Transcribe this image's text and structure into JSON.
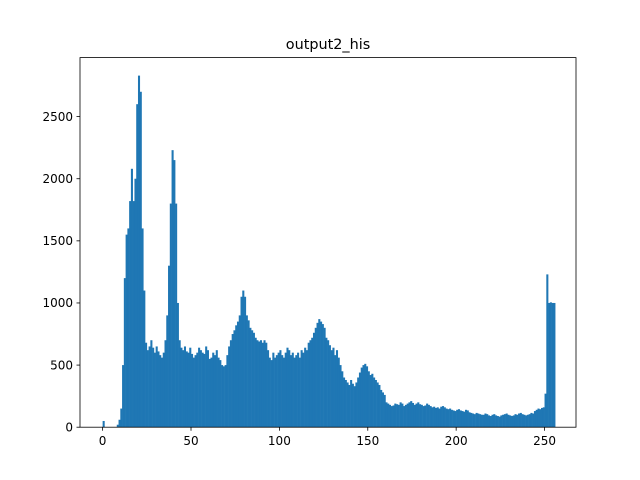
{
  "chart_data": {
    "type": "bar",
    "title": "output2_his",
    "xlabel": "",
    "ylabel": "",
    "bar_color": "#1f77b4",
    "xlim": [
      -12.8,
      267.8
    ],
    "ylim": [
      0,
      2975
    ],
    "x_ticks": [
      0,
      50,
      100,
      150,
      200,
      250
    ],
    "y_ticks": [
      0,
      500,
      1000,
      1500,
      2000,
      2500
    ],
    "grid": false,
    "bin_width": 1,
    "x_start": 0,
    "values": [
      50,
      0,
      0,
      0,
      0,
      0,
      0,
      0,
      20,
      60,
      150,
      500,
      1200,
      1550,
      1600,
      1820,
      2080,
      1820,
      2000,
      2600,
      2830,
      2700,
      1600,
      1100,
      680,
      620,
      650,
      700,
      640,
      600,
      650,
      610,
      580,
      560,
      600,
      700,
      900,
      1300,
      1800,
      2230,
      2150,
      1800,
      1000,
      700,
      640,
      620,
      650,
      610,
      600,
      640,
      590,
      560,
      580,
      600,
      640,
      620,
      600,
      590,
      650,
      620,
      550,
      560,
      600,
      580,
      620,
      560,
      540,
      500,
      490,
      500,
      580,
      650,
      700,
      750,
      780,
      820,
      850,
      900,
      1050,
      1100,
      1050,
      900,
      860,
      800,
      780,
      760,
      720,
      700,
      690,
      700,
      680,
      700,
      680,
      620,
      560,
      540,
      600,
      560,
      580,
      600,
      620,
      580,
      560,
      600,
      640,
      620,
      580,
      600,
      560,
      580,
      600,
      560,
      620,
      600,
      640,
      620,
      680,
      700,
      720,
      760,
      800,
      840,
      870,
      850,
      830,
      800,
      720,
      700,
      660,
      620,
      640,
      580,
      620,
      560,
      500,
      450,
      400,
      380,
      360,
      340,
      380,
      350,
      330,
      360,
      400,
      440,
      480,
      500,
      510,
      490,
      450,
      420,
      430,
      400,
      380,
      360,
      340,
      300,
      280,
      260,
      200,
      190,
      180,
      170,
      175,
      190,
      185,
      180,
      200,
      190,
      170,
      180,
      190,
      200,
      210,
      195,
      180,
      190,
      200,
      185,
      180,
      170,
      175,
      190,
      180,
      170,
      160,
      165,
      155,
      160,
      150,
      165,
      170,
      160,
      150,
      145,
      150,
      140,
      135,
      130,
      140,
      145,
      135,
      130,
      125,
      140,
      135,
      120,
      115,
      110,
      105,
      115,
      110,
      105,
      100,
      100,
      110,
      105,
      95,
      90,
      100,
      105,
      95,
      90,
      85,
      95,
      100,
      105,
      110,
      100,
      95,
      90,
      95,
      105,
      100,
      110,
      115,
      105,
      100,
      95,
      100,
      105,
      115,
      110,
      130,
      140,
      150,
      145,
      155,
      160,
      270,
      1230,
      1000,
      1005,
      1000,
      1000
    ]
  }
}
